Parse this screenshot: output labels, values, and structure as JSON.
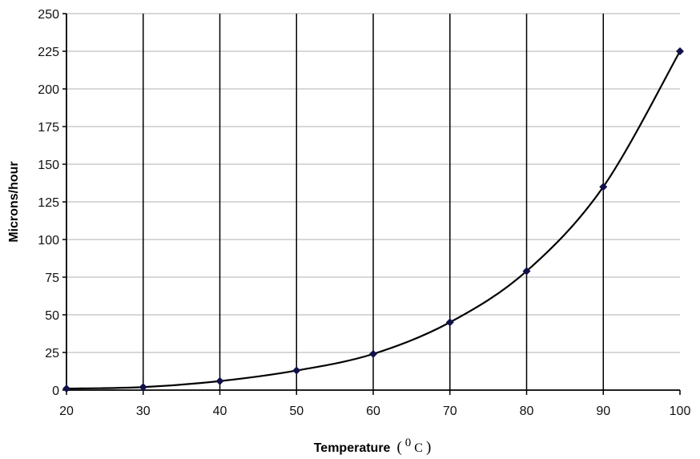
{
  "chart_data": {
    "type": "line",
    "title": "",
    "xlabel": "Temperature",
    "xlabel_unit": "(0C)",
    "xlabel_unit_parts": {
      "open": "(",
      "sup": "0",
      "unit": "C",
      "close": ")"
    },
    "ylabel": "Microns/hour",
    "x": [
      20,
      30,
      40,
      50,
      60,
      70,
      80,
      90,
      100
    ],
    "series": [
      {
        "name": "Microns/hour",
        "values": [
          1,
          2,
          6,
          13,
          24,
          45,
          79,
          135,
          225
        ],
        "color": "#000000",
        "marker_color": "#10104a",
        "marker": "diamond",
        "smooth": true
      }
    ],
    "xlim": [
      20,
      100
    ],
    "ylim": [
      0,
      250
    ],
    "xticks": [
      20,
      30,
      40,
      50,
      60,
      70,
      80,
      90,
      100
    ],
    "yticks": [
      0,
      25,
      50,
      75,
      100,
      125,
      150,
      175,
      200,
      225,
      250
    ],
    "grid": {
      "horizontal": true,
      "horizontal_color": "#c0c0c0",
      "vertical": true,
      "vertical_color": "#000000"
    },
    "legend": null
  }
}
